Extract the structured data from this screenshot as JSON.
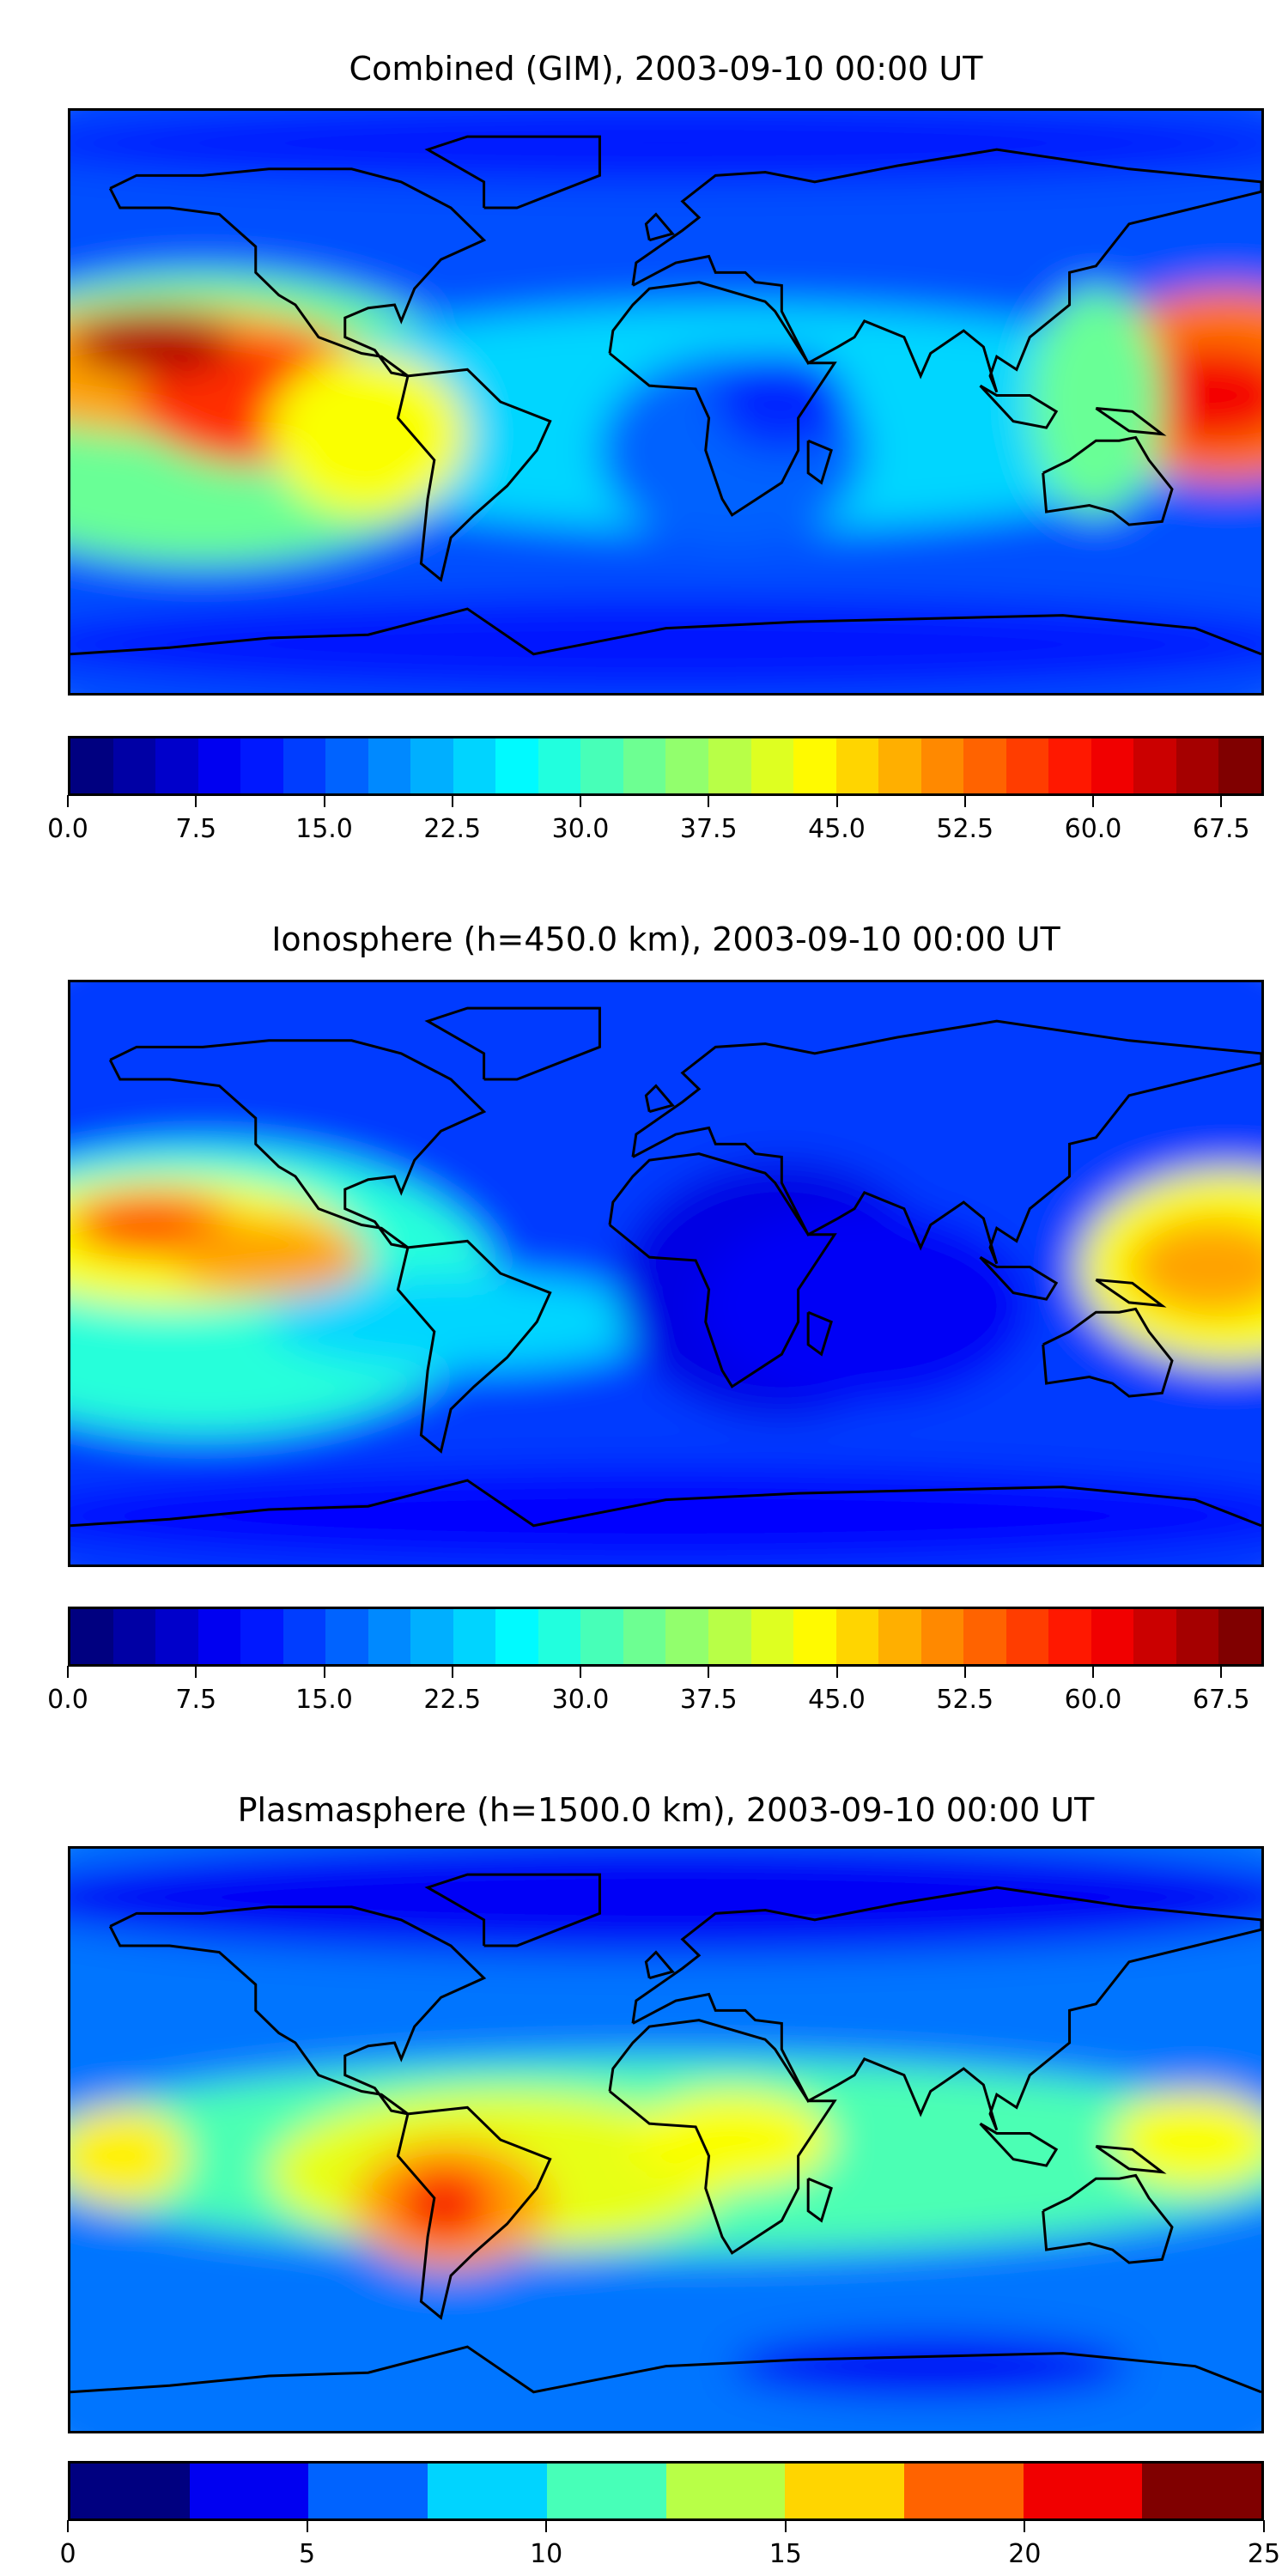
{
  "chart_data": [
    {
      "type": "heatmap",
      "title": "Combined (GIM), 2003-09-10 00:00 UT",
      "colormap": "jet",
      "colorbar": {
        "min": 0,
        "max": 70,
        "step": 2.5,
        "ticks": [
          "0.0",
          "7.5",
          "15.0",
          "22.5",
          "30.0",
          "37.5",
          "45.0",
          "52.5",
          "60.0",
          "67.5"
        ]
      },
      "field": "max ~68 near lon -160 lat 15; high values (50-65) along equatorial band lon -180 to -100; secondary max ~55 at lon 170 lat 5; low (<10) over Africa, Europe, poles"
    },
    {
      "type": "heatmap",
      "title": "Ionosphere  (h=450.0 km), 2003-09-10 00:00 UT",
      "colormap": "jet",
      "colorbar": {
        "min": 0,
        "max": 70,
        "step": 2.5,
        "ticks": [
          "0.0",
          "7.5",
          "15.0",
          "22.5",
          "30.0",
          "37.5",
          "45.0",
          "52.5",
          "60.0",
          "67.5"
        ]
      },
      "field": "max ~55 near lon -160 lat 15; ~40 at lon 170; very low (<5) over Africa and south Atlantic"
    },
    {
      "type": "heatmap",
      "title": "Plasmasphere (h=1500.0 km), 2003-09-10 00:00 UT",
      "colormap": "jet",
      "colorbar": {
        "min": 0,
        "max": 25,
        "step": 2.5,
        "ticks": [
          "0",
          "5",
          "10",
          "15",
          "20",
          "25"
        ]
      },
      "field": "max ~21 over central South America (lon -65 lat -20); 10-17 across tropics; <5 at high latitudes"
    }
  ]
}
